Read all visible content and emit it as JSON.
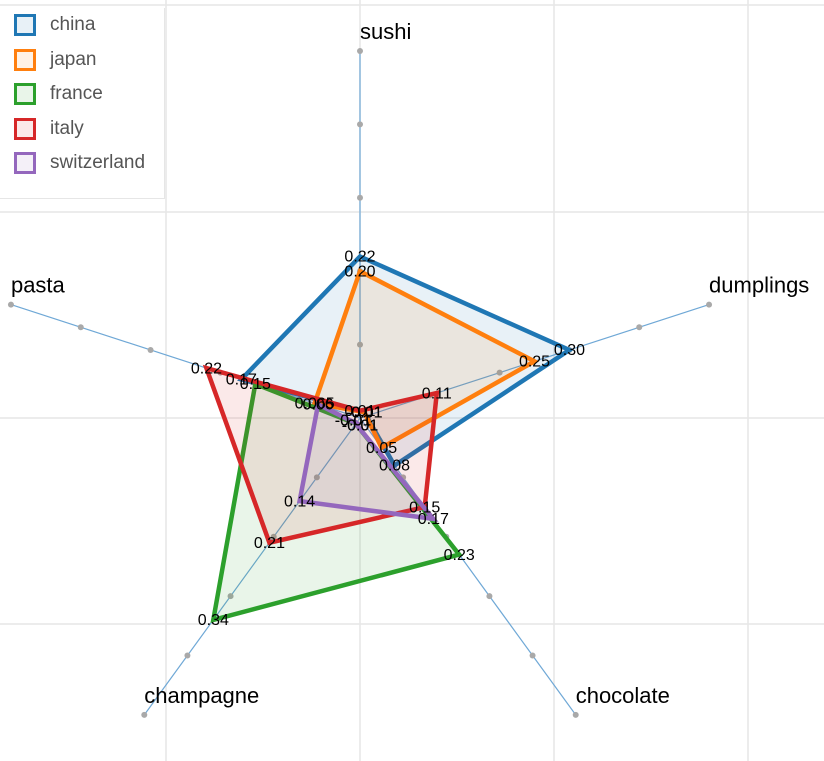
{
  "chart_data": {
    "type": "radar",
    "axes": [
      "sushi",
      "dumplings",
      "chocolate",
      "champagne",
      "pasta"
    ],
    "rmax": 0.5,
    "grid": true,
    "legend_position": "top-left",
    "series": [
      {
        "name": "china",
        "color": "#1f77b4",
        "values": [
          0.22,
          0.3,
          0.08,
          -0.01,
          0.17
        ],
        "labels": [
          "0.22",
          "0.30",
          "0.08",
          "-0.01",
          "0.17"
        ]
      },
      {
        "name": "japan",
        "color": "#ff7f0e",
        "values": [
          0.2,
          0.25,
          0.05,
          -0.01,
          0.065
        ],
        "labels": [
          "0.20",
          "0.25",
          "0.05",
          "-0.01",
          "0.065"
        ]
      },
      {
        "name": "france",
        "color": "#2ca02c",
        "values": [
          -0.01,
          -0.01,
          0.23,
          0.34,
          0.15
        ],
        "labels": [
          "-0.01",
          "-0.01",
          "0.23",
          "0.34",
          "0.15"
        ]
      },
      {
        "name": "italy",
        "color": "#d62728",
        "values": [
          0.01,
          0.11,
          0.15,
          0.21,
          0.22
        ],
        "labels": [
          "0.01",
          "0.11",
          "0.15",
          "0.21",
          "0.22"
        ]
      },
      {
        "name": "switzerland",
        "color": "#9467bd",
        "values": [
          -0.01,
          -0.01,
          0.17,
          0.14,
          0.06
        ],
        "labels": [
          "-0.01",
          "-0.01",
          "0.17",
          "0.14",
          "0.06"
        ]
      }
    ]
  }
}
